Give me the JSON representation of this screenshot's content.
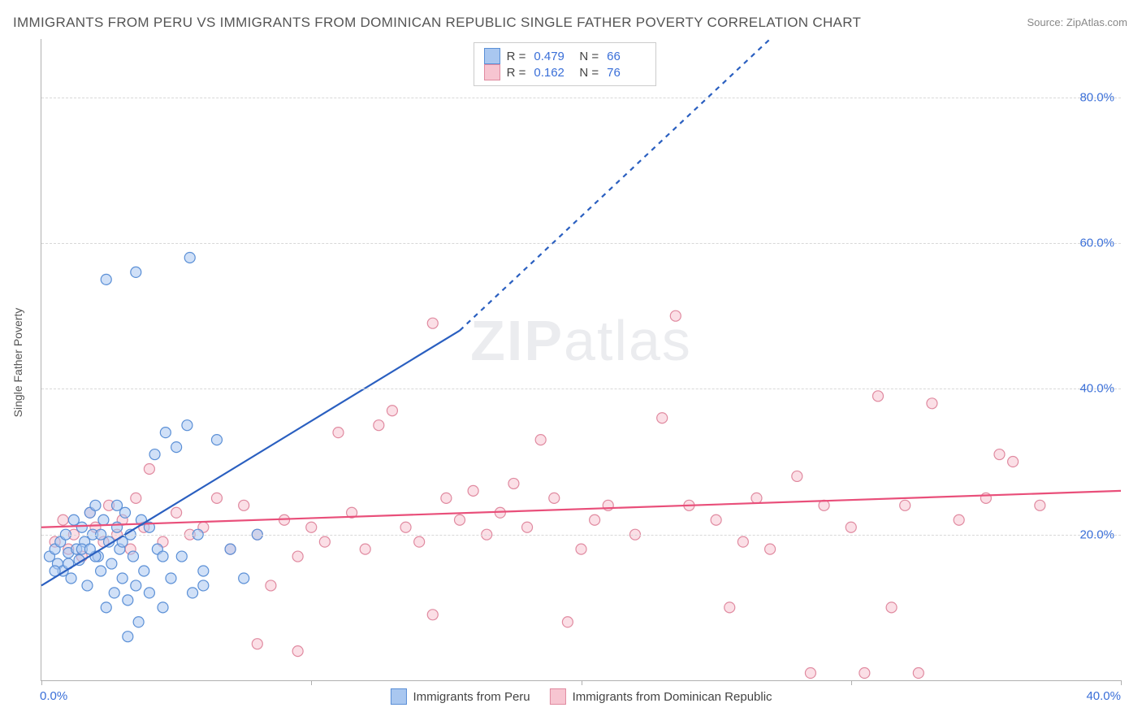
{
  "title": "IMMIGRANTS FROM PERU VS IMMIGRANTS FROM DOMINICAN REPUBLIC SINGLE FATHER POVERTY CORRELATION CHART",
  "source_label": "Source: ",
  "source_name": "ZipAtlas.com",
  "watermark_a": "ZIP",
  "watermark_b": "atlas",
  "y_axis_title": "Single Father Poverty",
  "chart": {
    "type": "scatter",
    "background_color": "#ffffff",
    "grid_color": "#d8d8d8",
    "axis_color": "#b0b0b0",
    "text_color": "#555555",
    "tick_label_color": "#3a6fd8",
    "tick_fontsize": 15,
    "title_fontsize": 17,
    "xlim": [
      0,
      40
    ],
    "ylim": [
      0,
      88
    ],
    "y_ticks": [
      20,
      40,
      60,
      80
    ],
    "y_tick_labels": [
      "20.0%",
      "40.0%",
      "60.0%",
      "80.0%"
    ],
    "x_ticks": [
      0,
      10,
      20,
      30,
      40
    ],
    "x_tick_labels_shown": {
      "0": "0.0%",
      "40": "40.0%"
    },
    "marker_radius": 6.5,
    "marker_opacity": 0.55,
    "trend_line_width": 2.2,
    "trend_dash": "6,6"
  },
  "series": {
    "peru": {
      "label": "Immigrants from Peru",
      "color_fill": "#a9c7f0",
      "color_stroke": "#5a8fd6",
      "R": "0.479",
      "N": "66",
      "trend": {
        "x1": 0,
        "y1": 13,
        "x2_solid": 15.5,
        "y2_solid": 48,
        "x2_dash": 27,
        "y2_dash": 88,
        "color": "#2a5fc0"
      },
      "points": [
        [
          0.3,
          17
        ],
        [
          0.5,
          18
        ],
        [
          0.6,
          16
        ],
        [
          0.7,
          19
        ],
        [
          0.8,
          15
        ],
        [
          0.9,
          20
        ],
        [
          1.0,
          17.5
        ],
        [
          1.1,
          14
        ],
        [
          1.2,
          22
        ],
        [
          1.3,
          18
        ],
        [
          1.4,
          16.5
        ],
        [
          1.5,
          21
        ],
        [
          1.6,
          19
        ],
        [
          1.7,
          13
        ],
        [
          1.8,
          23
        ],
        [
          1.9,
          20
        ],
        [
          2.0,
          24
        ],
        [
          2.1,
          17
        ],
        [
          2.2,
          15
        ],
        [
          2.3,
          22
        ],
        [
          2.4,
          10
        ],
        [
          2.5,
          19
        ],
        [
          2.6,
          16
        ],
        [
          2.7,
          12
        ],
        [
          2.8,
          21
        ],
        [
          2.9,
          18
        ],
        [
          3.0,
          14
        ],
        [
          3.1,
          23
        ],
        [
          3.2,
          11
        ],
        [
          3.3,
          20
        ],
        [
          3.4,
          17
        ],
        [
          3.5,
          13
        ],
        [
          3.6,
          8
        ],
        [
          3.7,
          22
        ],
        [
          3.8,
          15
        ],
        [
          4.0,
          12
        ],
        [
          4.2,
          31
        ],
        [
          4.3,
          18
        ],
        [
          4.5,
          10
        ],
        [
          4.6,
          34
        ],
        [
          4.8,
          14
        ],
        [
          5.0,
          32
        ],
        [
          5.2,
          17
        ],
        [
          5.4,
          35
        ],
        [
          5.6,
          12
        ],
        [
          5.8,
          20
        ],
        [
          6.0,
          15
        ],
        [
          6.5,
          33
        ],
        [
          7.0,
          18
        ],
        [
          7.5,
          14
        ],
        [
          8.0,
          20
        ],
        [
          3.2,
          6
        ],
        [
          3.5,
          56
        ],
        [
          2.4,
          55
        ],
        [
          5.5,
          58
        ],
        [
          4.0,
          21
        ],
        [
          2.0,
          17
        ],
        [
          1.5,
          18
        ],
        [
          2.8,
          24
        ],
        [
          3.0,
          19
        ],
        [
          1.0,
          16
        ],
        [
          0.5,
          15
        ],
        [
          2.2,
          20
        ],
        [
          1.8,
          18
        ],
        [
          4.5,
          17
        ],
        [
          6.0,
          13
        ]
      ]
    },
    "dominican": {
      "label": "Immigrants from Dominican Republic",
      "color_fill": "#f7c5d1",
      "color_stroke": "#e08aa0",
      "R": "0.162",
      "N": "76",
      "trend": {
        "x1": 0,
        "y1": 21,
        "x2_solid": 40,
        "y2_solid": 26,
        "color": "#e94f7a"
      },
      "points": [
        [
          0.5,
          19
        ],
        [
          0.8,
          22
        ],
        [
          1.0,
          18
        ],
        [
          1.2,
          20
        ],
        [
          1.5,
          17
        ],
        [
          1.8,
          23
        ],
        [
          2.0,
          21
        ],
        [
          2.3,
          19
        ],
        [
          2.5,
          24
        ],
        [
          2.8,
          20
        ],
        [
          3.0,
          22
        ],
        [
          3.3,
          18
        ],
        [
          3.5,
          25
        ],
        [
          3.8,
          21
        ],
        [
          4.0,
          29
        ],
        [
          4.5,
          19
        ],
        [
          5.0,
          23
        ],
        [
          5.5,
          20
        ],
        [
          6.0,
          21
        ],
        [
          6.5,
          25
        ],
        [
          7.0,
          18
        ],
        [
          7.5,
          24
        ],
        [
          8.0,
          20
        ],
        [
          8.5,
          13
        ],
        [
          9.0,
          22
        ],
        [
          9.5,
          17
        ],
        [
          10.0,
          21
        ],
        [
          10.5,
          19
        ],
        [
          11.0,
          34
        ],
        [
          11.5,
          23
        ],
        [
          12.0,
          18
        ],
        [
          12.5,
          35
        ],
        [
          13.0,
          37
        ],
        [
          13.5,
          21
        ],
        [
          14.0,
          19
        ],
        [
          14.5,
          49
        ],
        [
          15.0,
          25
        ],
        [
          15.5,
          22
        ],
        [
          16.0,
          26
        ],
        [
          16.5,
          20
        ],
        [
          17.0,
          23
        ],
        [
          17.5,
          27
        ],
        [
          18.0,
          21
        ],
        [
          18.5,
          33
        ],
        [
          19.0,
          25
        ],
        [
          20.0,
          18
        ],
        [
          20.5,
          22
        ],
        [
          21.0,
          24
        ],
        [
          22.0,
          20
        ],
        [
          23.0,
          36
        ],
        [
          23.5,
          50
        ],
        [
          24.0,
          24
        ],
        [
          25.0,
          22
        ],
        [
          25.5,
          10
        ],
        [
          26.0,
          19
        ],
        [
          26.5,
          25
        ],
        [
          27.0,
          18
        ],
        [
          28.0,
          28
        ],
        [
          28.5,
          1
        ],
        [
          29.0,
          24
        ],
        [
          30.0,
          21
        ],
        [
          30.5,
          1
        ],
        [
          31.0,
          39
        ],
        [
          31.5,
          10
        ],
        [
          32.0,
          24
        ],
        [
          32.5,
          1
        ],
        [
          33.0,
          38
        ],
        [
          34.0,
          22
        ],
        [
          35.0,
          25
        ],
        [
          35.5,
          31
        ],
        [
          36.0,
          30
        ],
        [
          37.0,
          24
        ],
        [
          8.0,
          5
        ],
        [
          9.5,
          4
        ],
        [
          14.5,
          9
        ],
        [
          19.5,
          8
        ]
      ]
    }
  },
  "legend_top": {
    "r_label": "R =",
    "n_label": "N ="
  }
}
